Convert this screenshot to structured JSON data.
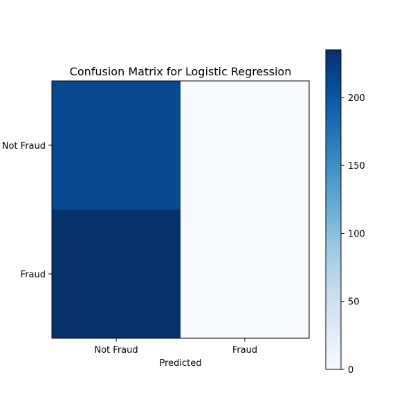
{
  "chart_data": {
    "type": "heatmap",
    "title": "Confusion Matrix for Logistic Regression",
    "xlabel": "Predicted",
    "ylabel": "",
    "x_categories": [
      "Not Fraud",
      "Fraud"
    ],
    "y_categories": [
      "Not Fraud",
      "Fraud"
    ],
    "values": [
      [
        214,
        0
      ],
      [
        235,
        0
      ]
    ],
    "colorbar": {
      "range": [
        0,
        235
      ],
      "ticks": [
        0,
        50,
        100,
        150,
        200
      ],
      "colormap": "Blues",
      "colors": [
        "#f7fbff",
        "#deebf7",
        "#c6dbef",
        "#9ecae1",
        "#6baed6",
        "#4292c6",
        "#2171b5",
        "#08519c",
        "#08306b"
      ]
    },
    "grid": false
  }
}
